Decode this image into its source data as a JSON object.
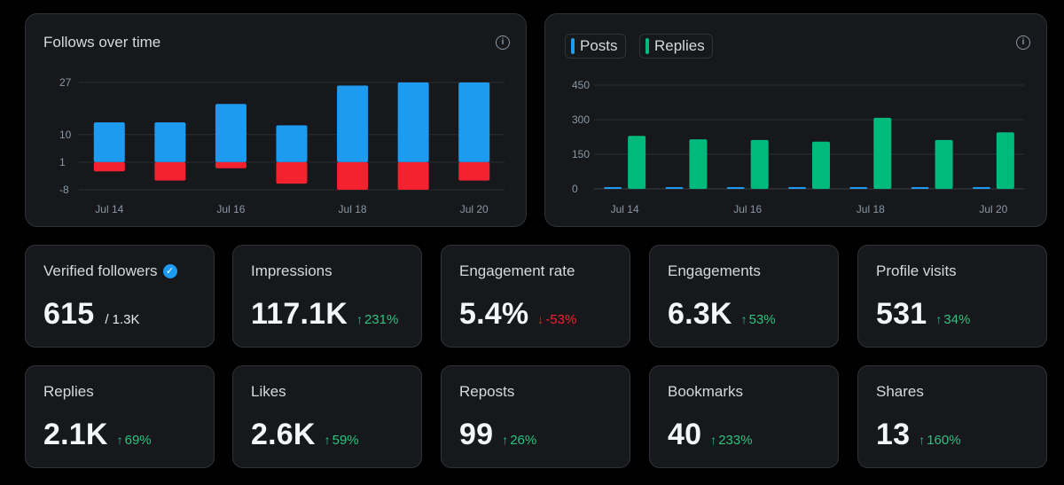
{
  "colors": {
    "blue": "#1d9bf0",
    "red": "#f4212e",
    "green": "#00ba7c",
    "up": "#2ec27e",
    "down": "#f4212e"
  },
  "chart_data": [
    {
      "type": "bar",
      "title": "Follows over time",
      "x": [
        "Jul 14",
        "Jul 15",
        "Jul 16",
        "Jul 17",
        "Jul 18",
        "Jul 19",
        "Jul 20"
      ],
      "xtick_labels": [
        "Jul 14",
        "Jul 16",
        "Jul 18",
        "Jul 20"
      ],
      "yticks": [
        27,
        10,
        1,
        -8
      ],
      "ylim": [
        -8,
        27
      ],
      "grid": true,
      "series": [
        {
          "color": "#1d9bf0",
          "values": [
            14,
            14,
            20,
            13,
            26,
            27,
            27
          ]
        },
        {
          "color": "#f4212e",
          "values": [
            -2,
            -5,
            -1,
            -6,
            -8,
            -8,
            -5
          ]
        }
      ]
    },
    {
      "type": "bar",
      "title": "",
      "x": [
        "Jul 14",
        "Jul 15",
        "Jul 16",
        "Jul 17",
        "Jul 18",
        "Jul 19",
        "Jul 20"
      ],
      "xtick_labels": [
        "Jul 14",
        "Jul 16",
        "Jul 18",
        "Jul 20"
      ],
      "yticks": [
        450,
        300,
        150,
        0
      ],
      "ylim": [
        0,
        450
      ],
      "grid": true,
      "legend": "top-left",
      "series": [
        {
          "name": "Posts",
          "color": "#1d9bf0",
          "values": [
            4,
            3,
            3,
            3,
            5,
            6,
            3
          ]
        },
        {
          "name": "Replies",
          "color": "#00ba7c",
          "values": [
            230,
            215,
            212,
            205,
            308,
            212,
            245
          ]
        }
      ]
    }
  ],
  "metrics_row1": [
    {
      "label": "Verified followers",
      "value": "615",
      "sub": "/ 1.3K",
      "verified_icon": true
    },
    {
      "label": "Impressions",
      "value": "117.1K",
      "delta": "231%",
      "direction": "up"
    },
    {
      "label": "Engagement rate",
      "value": "5.4%",
      "delta": "-53%",
      "direction": "down"
    },
    {
      "label": "Engagements",
      "value": "6.3K",
      "delta": "53%",
      "direction": "up"
    },
    {
      "label": "Profile visits",
      "value": "531",
      "delta": "34%",
      "direction": "up"
    }
  ],
  "metrics_row2": [
    {
      "label": "Replies",
      "value": "2.1K",
      "delta": "69%",
      "direction": "up"
    },
    {
      "label": "Likes",
      "value": "2.6K",
      "delta": "59%",
      "direction": "up"
    },
    {
      "label": "Reposts",
      "value": "99",
      "delta": "26%",
      "direction": "up"
    },
    {
      "label": "Bookmarks",
      "value": "40",
      "delta": "233%",
      "direction": "up"
    },
    {
      "label": "Shares",
      "value": "13",
      "delta": "160%",
      "direction": "up"
    }
  ]
}
